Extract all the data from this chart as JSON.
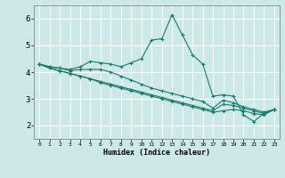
{
  "xlabel": "Humidex (Indice chaleur)",
  "background_color": "#cce8e8",
  "grid_color": "#ffffff",
  "line_color": "#1a7a6a",
  "xlim": [
    -0.5,
    23.5
  ],
  "ylim": [
    1.5,
    6.5
  ],
  "xticks": [
    0,
    1,
    2,
    3,
    4,
    5,
    6,
    7,
    8,
    9,
    10,
    11,
    12,
    13,
    14,
    15,
    16,
    17,
    18,
    19,
    20,
    21,
    22,
    23
  ],
  "yticks": [
    2,
    3,
    4,
    5,
    6
  ],
  "series": [
    [
      4.3,
      4.2,
      4.15,
      4.1,
      4.2,
      4.4,
      4.35,
      4.3,
      4.2,
      4.35,
      4.5,
      5.2,
      5.25,
      6.15,
      5.4,
      4.65,
      4.3,
      3.1,
      3.15,
      3.1,
      2.4,
      2.15,
      2.45,
      2.6
    ],
    [
      4.3,
      4.2,
      4.15,
      4.05,
      4.1,
      4.1,
      4.1,
      4.0,
      3.85,
      3.7,
      3.55,
      3.4,
      3.3,
      3.2,
      3.1,
      3.0,
      2.9,
      2.65,
      2.95,
      2.85,
      2.7,
      2.6,
      2.5,
      2.6
    ],
    [
      4.3,
      4.15,
      4.05,
      3.95,
      3.85,
      3.75,
      3.65,
      3.55,
      3.45,
      3.35,
      3.25,
      3.15,
      3.05,
      2.95,
      2.85,
      2.75,
      2.65,
      2.55,
      2.8,
      2.75,
      2.65,
      2.55,
      2.45,
      2.6
    ],
    [
      4.3,
      4.15,
      4.05,
      3.95,
      3.85,
      3.75,
      3.6,
      3.5,
      3.4,
      3.3,
      3.2,
      3.1,
      3.0,
      2.9,
      2.8,
      2.7,
      2.6,
      2.5,
      2.55,
      2.6,
      2.55,
      2.45,
      2.4,
      2.6
    ]
  ]
}
